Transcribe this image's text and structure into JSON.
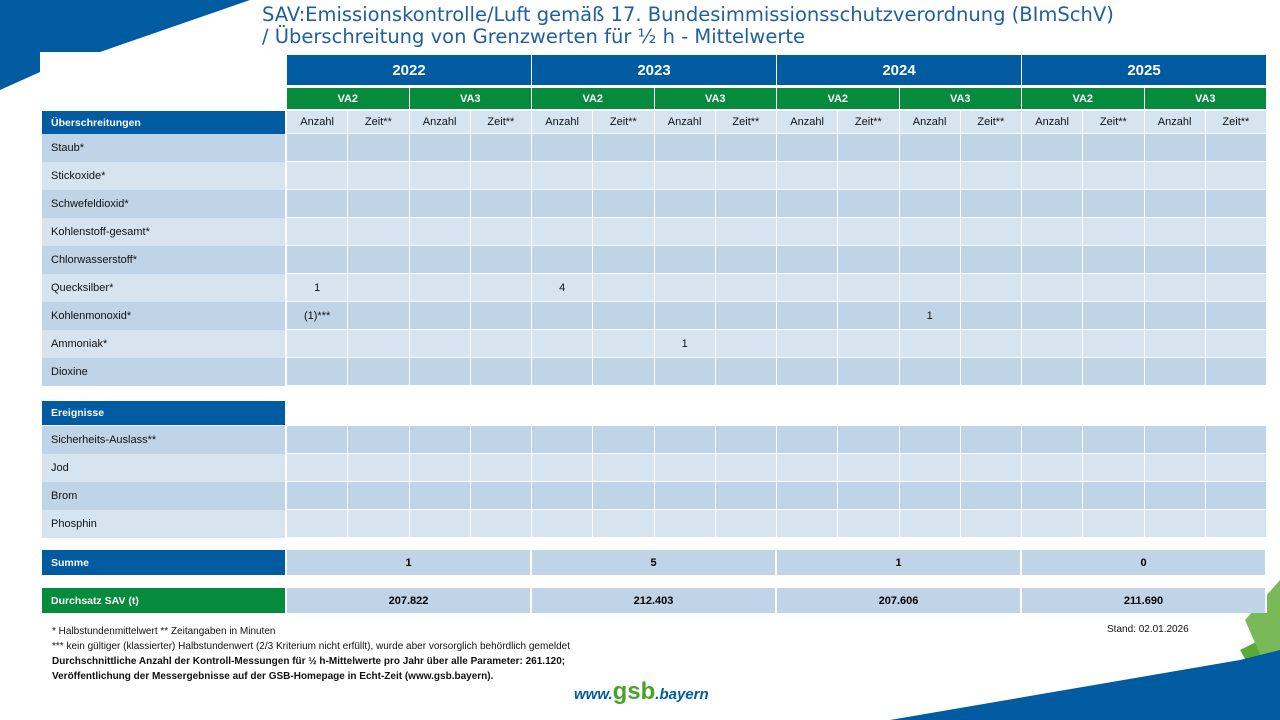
{
  "title": {
    "line1": "SAV:Emissionskontrolle/Luft gemäß 17. Bundesimmissionsschutzverordnung (BImSchV)",
    "line2": "/ Überschreitung von Grenzwerten für ½ h - Mittelwerte"
  },
  "years": [
    "2022",
    "2023",
    "2024",
    "2025"
  ],
  "lines": [
    "VA2",
    "VA3"
  ],
  "subcols": [
    "Anzahl",
    "Zeit**"
  ],
  "section1": {
    "label": "Überschreitungen",
    "rows": [
      {
        "label": "Staub*",
        "values": [
          "",
          "",
          "",
          "",
          "",
          "",
          "",
          "",
          "",
          "",
          "",
          "",
          "",
          "",
          "",
          ""
        ]
      },
      {
        "label": "Stickoxide*",
        "values": [
          "",
          "",
          "",
          "",
          "",
          "",
          "",
          "",
          "",
          "",
          "",
          "",
          "",
          "",
          "",
          ""
        ]
      },
      {
        "label": "Schwefeldioxid*",
        "values": [
          "",
          "",
          "",
          "",
          "",
          "",
          "",
          "",
          "",
          "",
          "",
          "",
          "",
          "",
          "",
          ""
        ]
      },
      {
        "label": "Kohlenstoff-gesamt*",
        "values": [
          "",
          "",
          "",
          "",
          "",
          "",
          "",
          "",
          "",
          "",
          "",
          "",
          "",
          "",
          "",
          ""
        ]
      },
      {
        "label": "Chlorwasserstoff*",
        "values": [
          "",
          "",
          "",
          "",
          "",
          "",
          "",
          "",
          "",
          "",
          "",
          "",
          "",
          "",
          "",
          ""
        ]
      },
      {
        "label": "Quecksilber*",
        "values": [
          "1",
          "",
          "",
          "",
          "4",
          "",
          "",
          "",
          "",
          "",
          "",
          "",
          "",
          "",
          "",
          ""
        ]
      },
      {
        "label": "Kohlenmonoxid*",
        "values": [
          "(1)***",
          "",
          "",
          "",
          "",
          "",
          "",
          "",
          "",
          "",
          "1",
          "",
          "",
          "",
          "",
          ""
        ]
      },
      {
        "label": "Ammoniak*",
        "values": [
          "",
          "",
          "",
          "",
          "",
          "",
          "1",
          "",
          "",
          "",
          "",
          "",
          "",
          "",
          "",
          ""
        ]
      },
      {
        "label": "Dioxine",
        "values": [
          "",
          "",
          "",
          "",
          "",
          "",
          "",
          "",
          "",
          "",
          "",
          "",
          "",
          "",
          "",
          ""
        ]
      }
    ]
  },
  "section2": {
    "label": "Ereignisse",
    "rows": [
      {
        "label": "Sicherheits-Auslass**",
        "values": [
          "",
          "",
          "",
          "",
          "",
          "",
          "",
          "",
          "",
          "",
          "",
          "",
          "",
          "",
          "",
          ""
        ]
      },
      {
        "label": "Jod",
        "values": [
          "",
          "",
          "",
          "",
          "",
          "",
          "",
          "",
          "",
          "",
          "",
          "",
          "",
          "",
          "",
          ""
        ]
      },
      {
        "label": "Brom",
        "values": [
          "",
          "",
          "",
          "",
          "",
          "",
          "",
          "",
          "",
          "",
          "",
          "",
          "",
          "",
          "",
          ""
        ]
      },
      {
        "label": "Phosphin",
        "values": [
          "",
          "",
          "",
          "",
          "",
          "",
          "",
          "",
          "",
          "",
          "",
          "",
          "",
          "",
          "",
          ""
        ]
      }
    ]
  },
  "summe": {
    "label": "Summe",
    "values": [
      "1",
      "5",
      "1",
      "0"
    ]
  },
  "durchsatz": {
    "label": "Durchsatz SAV (t)",
    "values": [
      "207.822",
      "212.403",
      "207.606",
      "211.690"
    ]
  },
  "notes": {
    "n1": "* Halbstundenmittelwert    ** Zeitangaben in Minuten",
    "n2": "*** kein gültiger (klassierter) Halbstundenwert (2/3 Kriterium nicht erfüllt),  wurde aber vorsorglich behördlich gemeldet",
    "n3": "Durchschnittliche Anzahl der Kontroll-Messungen für ½ h-Mittelwerte pro Jahr über alle Parameter:  261.120;",
    "n4": "Veröffentlichung der Messergebnisse auf der GSB-Homepage in Echt-Zeit (www.gsb.bayern)."
  },
  "stand": "Stand: 02.01.2026",
  "logo": {
    "pre": "www.",
    "mid": "gsb",
    "post": ".bayern"
  },
  "colors": {
    "blue": "#005ba1",
    "green": "#068a3c",
    "rowDark": "#bfd4e6",
    "rowLight": "#d6e4f0"
  }
}
